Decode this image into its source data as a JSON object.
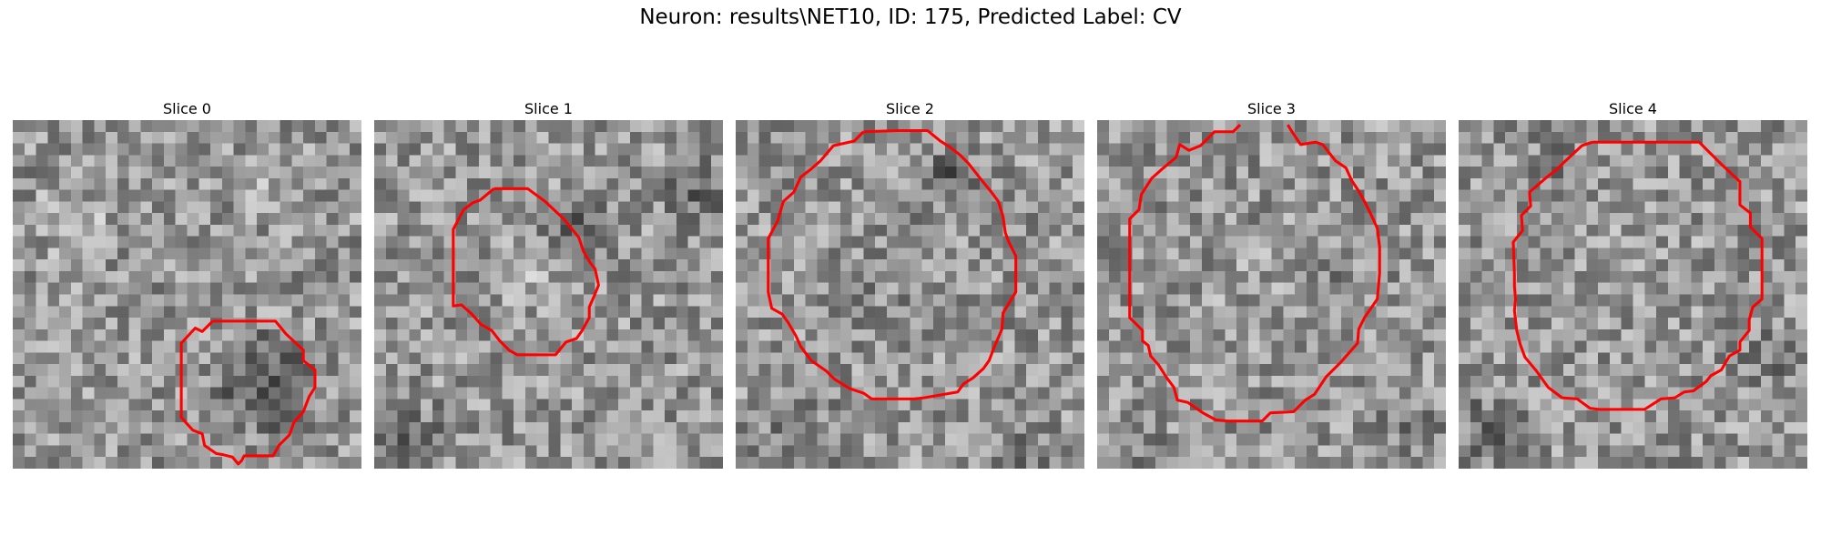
{
  "figure": {
    "title": "Neuron: results\\NET10, ID: 175, Predicted Label: CV",
    "contour_color": "#ff0000"
  },
  "panels": [
    {
      "title": "Slice 0",
      "seed": 11
    },
    {
      "title": "Slice 1",
      "seed": 23
    },
    {
      "title": "Slice 2",
      "seed": 37
    },
    {
      "title": "Slice 3",
      "seed": 51
    },
    {
      "title": "Slice 4",
      "seed": 67
    }
  ]
}
